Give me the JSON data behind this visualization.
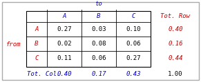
{
  "col_headers": [
    "",
    "A",
    "B",
    "C"
  ],
  "row_headers": [
    "A",
    "B",
    "C"
  ],
  "matrix": [
    [
      0.27,
      0.03,
      0.1
    ],
    [
      0.02,
      0.08,
      0.06
    ],
    [
      0.11,
      0.06,
      0.27
    ]
  ],
  "tot_row": [
    "0.40",
    "0.16",
    "0.44"
  ],
  "tot_col": [
    "0.40",
    "0.17",
    "0.43"
  ],
  "grand_total": "1.00",
  "to_label": "to",
  "from_label": "from",
  "tot_row_label": "Tot. Row",
  "tot_col_label": "Tot. Col.",
  "col_header_color": "#0000cc",
  "row_header_color": "#cc0000",
  "tot_val_color_red": "#cc0000",
  "tot_label_color_blue": "#0000cc",
  "cell_text_color": "#000000",
  "background_color": "#ffffff",
  "border_color": "#000000",
  "fontsize": 6.5
}
